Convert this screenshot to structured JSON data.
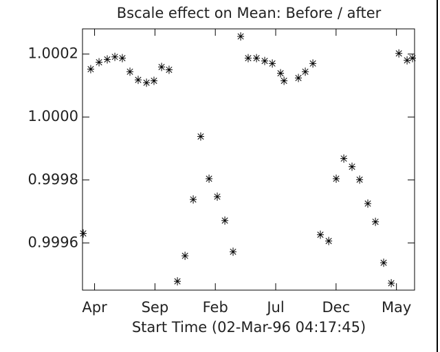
{
  "chart_data": {
    "type": "scatter",
    "title": "Bscale effect on Mean: Before / after",
    "x_label": "Start Time (02-Mar-96 04:17:45)",
    "x": [
      0.06,
      0.68,
      1.37,
      2.05,
      2.68,
      3.3,
      3.93,
      4.61,
      5.3,
      5.92,
      6.55,
      7.17,
      7.86,
      8.49,
      9.17,
      9.79,
      10.48,
      11.16,
      11.79,
      12.47,
      13.1,
      13.72,
      14.41,
      15.09,
      15.72,
      16.4,
      16.69,
      17.88,
      18.45,
      19.08,
      19.7,
      20.39,
      21.01,
      21.64,
      22.32,
      22.95,
      23.63,
      24.26,
      24.94,
      25.57,
      26.2,
      26.88,
      27.33
    ],
    "values": [
      0.99963,
      1.000152,
      1.000174,
      1.000183,
      1.000191,
      1.000187,
      1.000144,
      1.000118,
      1.000109,
      1.000115,
      1.000159,
      1.00015,
      0.999478,
      0.999559,
      0.999738,
      0.999938,
      0.999804,
      0.999747,
      0.999671,
      0.999572,
      1.000256,
      1.000187,
      1.000187,
      1.000178,
      1.00017,
      1.000139,
      1.000115,
      1.000124,
      1.000144,
      1.00017,
      0.999626,
      0.999606,
      0.999804,
      0.999868,
      0.999842,
      0.999801,
      0.999725,
      0.999667,
      0.999537,
      0.999472,
      1.000202,
      1.00018,
      1.000187
    ],
    "color": "#000000",
    "xlim": [
      0,
      27.5
    ],
    "xticks": [
      {
        "value": 1,
        "label": "Apr"
      },
      {
        "value": 6,
        "label": "Sep"
      },
      {
        "value": 11,
        "label": "Feb"
      },
      {
        "value": 16,
        "label": "Jul"
      },
      {
        "value": 21,
        "label": "Dec"
      },
      {
        "value": 26,
        "label": "May"
      }
    ],
    "ylim": [
      0.99945,
      1.00028
    ],
    "yticks": [
      0.9996,
      0.9998,
      {
        "value": 1,
        "label": "1.0000"
      },
      1.0002
    ],
    "grid": false
  }
}
